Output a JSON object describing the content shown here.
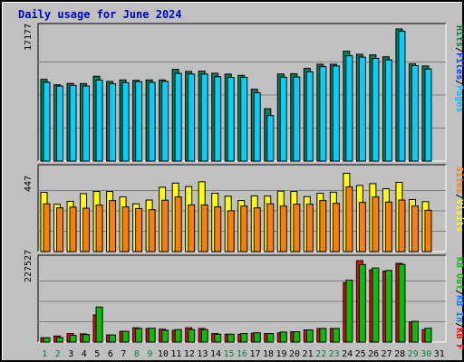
{
  "chart_data": [
    {
      "type": "bar",
      "title": "Daily usage for June 2024",
      "panel": "hits-files-pages",
      "ylabel_max": "17177",
      "legend": [
        {
          "label": "Pages",
          "color": "#00c0ff"
        },
        {
          "label": "Files",
          "color": "#0040ff"
        },
        {
          "label": "Hits",
          "color": "#008040"
        }
      ],
      "ymax": 17177,
      "categories": [
        1,
        2,
        3,
        4,
        5,
        6,
        7,
        8,
        9,
        10,
        11,
        12,
        13,
        14,
        15,
        16,
        17,
        18,
        19,
        20,
        21,
        22,
        23,
        24,
        25,
        26,
        27,
        28,
        29,
        30,
        31
      ],
      "series": [
        {
          "name": "Hits",
          "color": "#00805a",
          "values": [
            10630,
            9920,
            10100,
            10080,
            11030,
            10350,
            10550,
            10500,
            10550,
            10550,
            11920,
            11650,
            11700,
            11420,
            11310,
            11140,
            9350,
            6810,
            11320,
            11360,
            12060,
            12590,
            12590,
            14290,
            13880,
            13800,
            13560,
            17177,
            12660,
            12370,
            0
          ]
        },
        {
          "name": "Files",
          "color": "#00d0ff",
          "values": [
            10250,
            9760,
            9840,
            9760,
            10540,
            10050,
            10190,
            10320,
            10240,
            10360,
            11410,
            11310,
            11310,
            10970,
            10870,
            10880,
            8880,
            5920,
            10920,
            10930,
            11600,
            12290,
            12370,
            13690,
            13520,
            13350,
            13160,
            16880,
            12420,
            11980,
            0
          ]
        }
      ]
    },
    {
      "type": "bar",
      "panel": "visits-sites",
      "ylabel_max": "447",
      "legend": [
        {
          "label": "Visits",
          "color": "#ffff00"
        },
        {
          "label": "Sites",
          "color": "#ff8000"
        }
      ],
      "ymax": 447,
      "categories": [
        1,
        2,
        3,
        4,
        5,
        6,
        7,
        8,
        9,
        10,
        11,
        12,
        13,
        14,
        15,
        16,
        17,
        18,
        19,
        20,
        21,
        22,
        23,
        24,
        25,
        26,
        27,
        28,
        29,
        30,
        31
      ],
      "series": [
        {
          "name": "Visits",
          "color": "#ffff00",
          "values": [
            325,
            260,
            276,
            318,
            330,
            330,
            300,
            262,
            283,
            353,
            376,
            357,
            383,
            320,
            304,
            280,
            306,
            305,
            332,
            330,
            302,
            320,
            326,
            430,
            363,
            373,
            345,
            380,
            286,
            274,
            0
          ]
        },
        {
          "name": "Sites",
          "color": "#ff8000",
          "values": [
            262,
            240,
            244,
            238,
            255,
            280,
            245,
            236,
            230,
            282,
            300,
            256,
            256,
            245,
            224,
            250,
            240,
            262,
            250,
            260,
            260,
            280,
            265,
            355,
            270,
            300,
            272,
            283,
            250,
            227,
            0
          ]
        }
      ]
    },
    {
      "type": "bar",
      "panel": "kbytes",
      "ylabel_max": "227527",
      "legend": [
        {
          "label": "KB F",
          "color": "#ff0000"
        },
        {
          "label": "KB In",
          "color": "#0080ff"
        },
        {
          "label": "KB Out",
          "color": "#00c000"
        }
      ],
      "ymax": 227527,
      "categories": [
        1,
        2,
        3,
        4,
        5,
        6,
        7,
        8,
        9,
        10,
        11,
        12,
        13,
        14,
        15,
        16,
        17,
        18,
        19,
        20,
        21,
        22,
        23,
        24,
        25,
        26,
        27,
        28,
        29,
        30,
        31
      ],
      "series": [
        {
          "name": "KB F",
          "color": "#ff0000",
          "values": [
            12000,
            17000,
            24000,
            23000,
            76000,
            20000,
            30000,
            40000,
            38000,
            36000,
            33000,
            40000,
            38000,
            24000,
            22000,
            22000,
            25000,
            24000,
            26000,
            29000,
            34000,
            38000,
            38000,
            166000,
            227527,
            202000,
            198000,
            220000,
            56000,
            35000,
            0
          ]
        },
        {
          "name": "KB Out",
          "color": "#00c000",
          "values": [
            12000,
            13000,
            19000,
            21000,
            98000,
            20000,
            30000,
            38000,
            39000,
            33000,
            35000,
            35000,
            35000,
            22000,
            22000,
            24000,
            26000,
            24000,
            28000,
            29000,
            34000,
            38000,
            38000,
            173000,
            216527,
            207000,
            200000,
            217000,
            58000,
            39000,
            0
          ]
        }
      ]
    }
  ],
  "legend_sep": "/",
  "colors": {
    "frame_bg": "#c0c0c0",
    "plot_bg": "#c0c0c0",
    "title": "#0000ff"
  }
}
